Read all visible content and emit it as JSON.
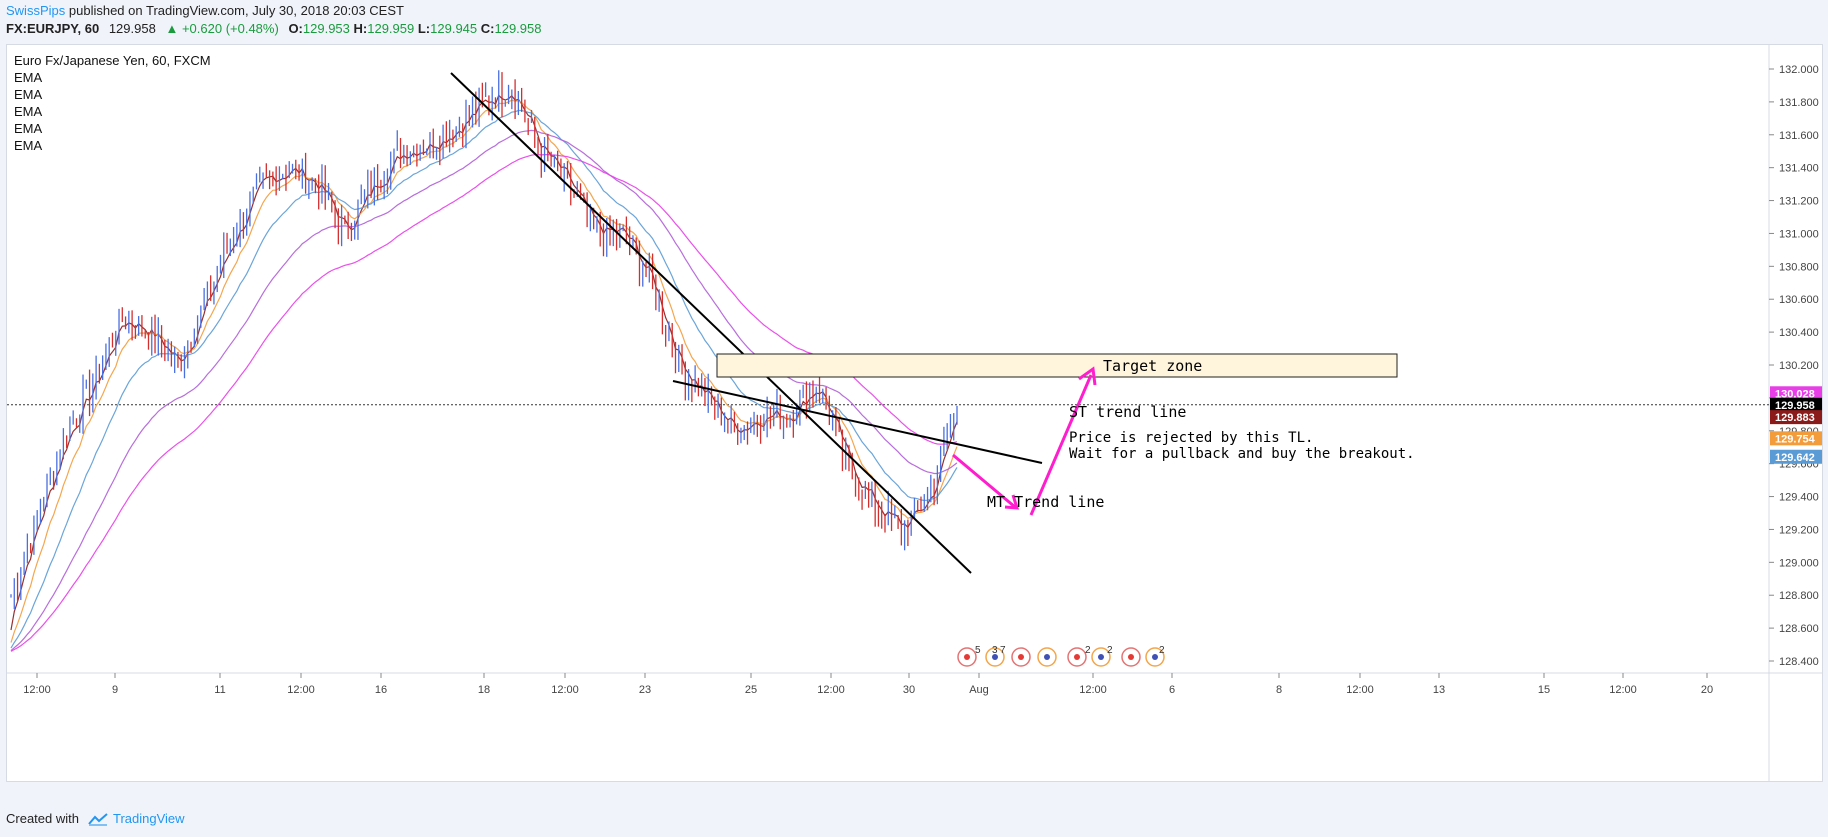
{
  "header": {
    "publisher": "SwissPips",
    "published_text": "published on TradingView.com, July 30, 2018 20:03 CEST"
  },
  "quote": {
    "symbol": "FX:EURJPY, 60",
    "price": "129.958",
    "change": "+0.620 (+0.48%)",
    "o_label": "O:",
    "o": "129.953",
    "h_label": "H:",
    "h": "129.959",
    "l_label": "L:",
    "l": "129.945",
    "c_label": "C:",
    "c": "129.958"
  },
  "legend": {
    "title": "Euro Fx/Japanese Yen, 60, FXCM",
    "indicators": [
      "EMA",
      "EMA",
      "EMA",
      "EMA",
      "EMA"
    ]
  },
  "footer": {
    "created_with": "Created with",
    "brand": "TradingView"
  },
  "colors": {
    "up": "#4a6fe0",
    "down": "#d32f2f",
    "ema_fast": "#8b1a1a",
    "ema_orange": "#f39c3c",
    "ema_blue": "#5b9bd5",
    "ema_violet": "#b05ed8",
    "ema_magenta": "#e83ee8",
    "annotation": "#ff1dce"
  },
  "chart_data": {
    "type": "line",
    "title": "Euro Fx/Japanese Yen, 60, FXCM",
    "xlabel": "",
    "ylabel": "",
    "ylim": [
      128.3,
      132.2
    ],
    "x_ticks": [
      "12:00",
      "9",
      "11",
      "12:00",
      "16",
      "18",
      "12:00",
      "23",
      "25",
      "12:00",
      "30",
      "Aug",
      "12:00",
      "6",
      "8",
      "12:00",
      "13",
      "15",
      "12:00",
      "20"
    ],
    "y_ticks": [
      "132.000",
      "131.800",
      "131.600",
      "131.400",
      "131.200",
      "131.000",
      "130.800",
      "130.600",
      "130.400",
      "130.200",
      "130.000",
      "129.800",
      "129.600",
      "129.400",
      "129.200",
      "129.000",
      "128.800",
      "128.600",
      "128.400"
    ],
    "series": [
      {
        "values": [
          128.8,
          129.3,
          129.8,
          130.1,
          130.5,
          130.4,
          130.2,
          130.6,
          131.0,
          131.3,
          131.4,
          131.3,
          131.0,
          131.3,
          131.5,
          131.55,
          131.65,
          131.8,
          131.9,
          131.5,
          131.3,
          131.0,
          131.0,
          130.7,
          130.2,
          130.0,
          129.8,
          129.9,
          129.9,
          130.1,
          129.6,
          129.35,
          129.2,
          129.4,
          129.95
        ]
      }
    ],
    "price_labels": [
      {
        "value": 130.028,
        "text": "130.028",
        "color": "#e83ee8"
      },
      {
        "value": 129.958,
        "text": "129.958",
        "color": "#000000"
      },
      {
        "value": 129.883,
        "text": "129.883",
        "color": "#8b1a1a"
      },
      {
        "value": 129.754,
        "text": "129.754",
        "color": "#f39c3c"
      },
      {
        "value": 129.642,
        "text": "129.642",
        "color": "#5b9bd5"
      }
    ],
    "annotations": {
      "target": "Target zone",
      "st_line": "ST trend line",
      "mt_line": "MT Trend line",
      "note1": "Price is rejected by this TL.",
      "note2": "Wait for a pullback and buy the breakout."
    },
    "event_counts": [
      "5",
      "3",
      "7",
      "2",
      "2",
      "2"
    ]
  }
}
